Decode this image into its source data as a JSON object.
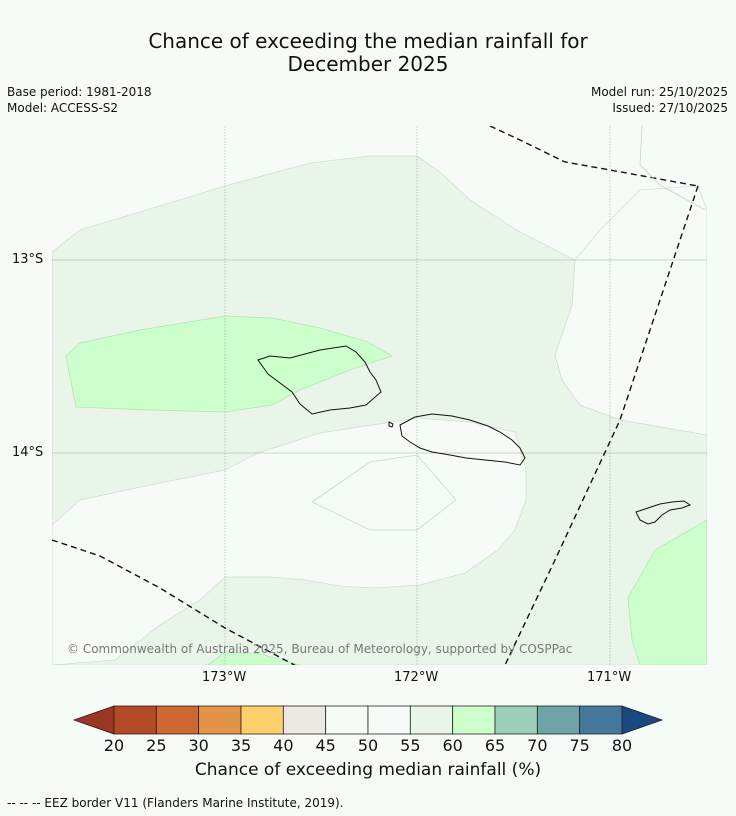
{
  "title": {
    "line1": "Chance of exceeding the median rainfall for",
    "line2": "December 2025"
  },
  "meta": {
    "base_period": "Base period: 1981-2018",
    "model": "Model: ACCESS-S2",
    "model_run": "Model run: 25/10/2025",
    "issued": "Issued: 27/10/2025"
  },
  "map": {
    "latitudes": [
      "13°S",
      "14°S"
    ],
    "longitudes": [
      "173°W",
      "172°W",
      "171°W"
    ],
    "copyright": "© Commonwealth of Australia 2025, Bureau of Meteorology, supported by COSPPac"
  },
  "legend": {
    "title": "Chance of exceeding median rainfall (%)",
    "ticks": [
      "20",
      "25",
      "30",
      "35",
      "40",
      "45",
      "50",
      "55",
      "60",
      "65",
      "70",
      "75",
      "80"
    ],
    "colors": [
      "#b34a26",
      "#cf6733",
      "#e39447",
      "#ffcf6b",
      "#ebe8e4",
      "#f7fbf7",
      "#f7fbf7",
      "#eaf5ea",
      "#ccffcc",
      "#9dd0bc",
      "#6ea3a8",
      "#44799c"
    ],
    "low_arrow_color": "#9a3623",
    "high_arrow_color": "#18497f"
  },
  "footer": {
    "eez_note": "-- -- -- EEZ border V11 (Flanders Marine Institute, 2019)."
  }
}
